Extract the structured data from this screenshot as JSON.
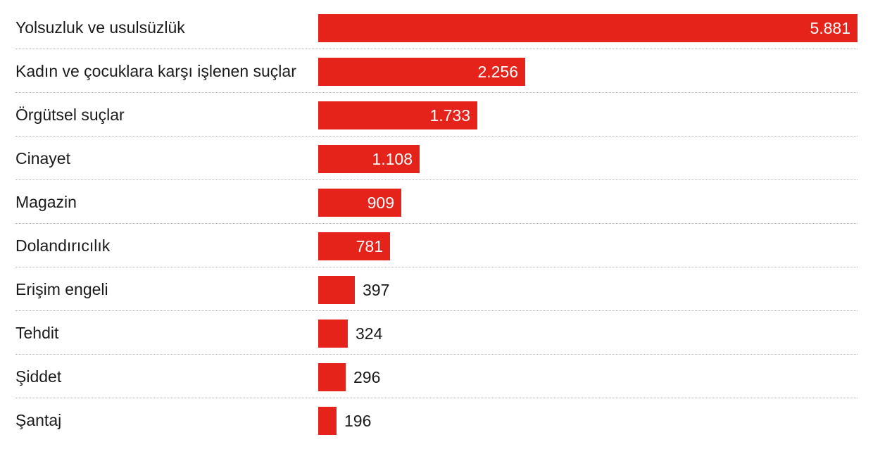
{
  "chart_data": {
    "type": "bar",
    "orientation": "horizontal",
    "categories": [
      "Yolsuzluk ve usulsüzlük",
      "Kadın ve çocuklara karşı işlenen suçlar",
      "Örgütsel suçlar",
      "Cinayet",
      "Magazin",
      "Dolandırıcılık",
      "Erişim engeli",
      "Tehdit",
      "Şiddet",
      "Şantaj"
    ],
    "values": [
      5881,
      2256,
      1733,
      1108,
      909,
      781,
      397,
      324,
      296,
      196
    ],
    "value_labels": [
      "5.881",
      "2.256",
      "1.733",
      "1.108",
      "909",
      "781",
      "397",
      "324",
      "296",
      "196"
    ],
    "bar_color": "#e5231b",
    "xlim": [
      0,
      5881
    ],
    "grid": false,
    "title": "",
    "xlabel": "",
    "ylabel": ""
  }
}
